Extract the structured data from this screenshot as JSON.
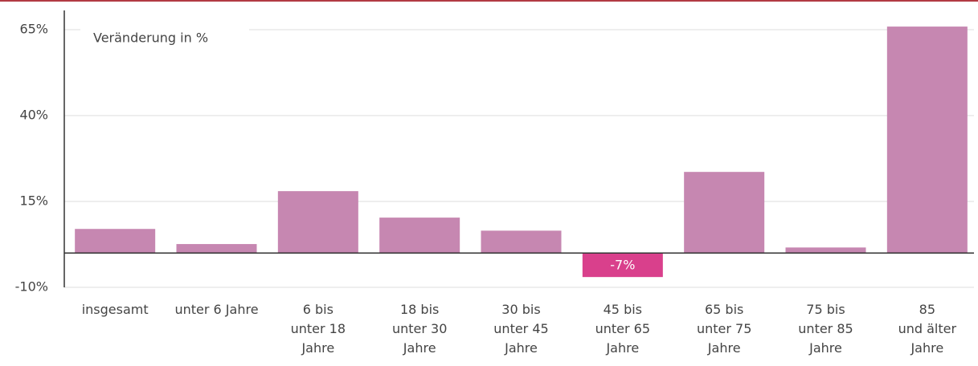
{
  "chart_data": {
    "type": "bar",
    "annotation": "Veränderung in %",
    "categories": [
      "insgesamt",
      "unter 6 Jahre",
      "6 bis\nunter 18\nJahre",
      "18 bis\nunter 30\nJahre",
      "30 bis\nunter 45\nJahre",
      "45 bis\nunter 65\nJahre",
      "65 bis\nunter 75\nJahre",
      "75 bis\nunter 85\nJahre",
      "85\nund älter\nJahre"
    ],
    "values": [
      7,
      2.6,
      18,
      10.3,
      6.5,
      -7,
      23.6,
      1.6,
      65.9
    ],
    "value_labels": [
      null,
      null,
      null,
      null,
      null,
      "-7%",
      null,
      null,
      null
    ],
    "colors": [
      "#c687b1",
      "#c687b1",
      "#c687b1",
      "#c687b1",
      "#c687b1",
      "#d9408c",
      "#c687b1",
      "#c687b1",
      "#c687b1"
    ],
    "ylim": [
      -10,
      70.6
    ],
    "yticks": [
      {
        "value": -10,
        "label": "-10%"
      },
      {
        "value": 15,
        "label": "15%"
      },
      {
        "value": 40,
        "label": "40%"
      },
      {
        "value": 65,
        "label": "65%"
      }
    ],
    "grid": true
  }
}
